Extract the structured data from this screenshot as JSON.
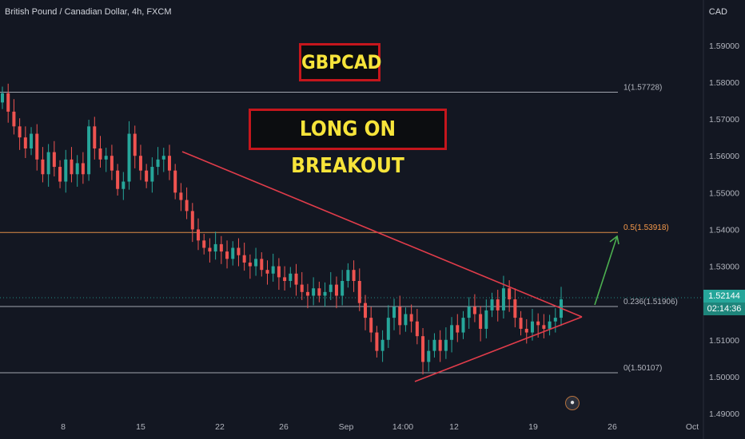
{
  "header": {
    "symbol_line": "British Pound / Canadian Dollar, 4h, FXCM",
    "currency": "CAD"
  },
  "annotations": {
    "symbol_banner": "GBPCAD",
    "signal_banner": "LONG ON BREAKOUT"
  },
  "price_tag": {
    "price": "1.52144",
    "countdown": "02:14:36"
  },
  "footer_icon": "globe-flag-icon",
  "colors": {
    "background": "#131722",
    "bull": "#26a69a",
    "bear": "#ef5350",
    "trendline": "#e03c4a",
    "fib_line": "#d1d4dc",
    "fib_mid": "#f5994b",
    "arrow": "#4caf50",
    "banner_text": "#f7e43a",
    "banner_border": "#c5161c"
  },
  "chart_data": {
    "type": "candlestick",
    "symbol": "GBPCAD",
    "timeframe": "4h",
    "ylim": [
      1.49,
      1.598
    ],
    "y_ticks": [
      "1.59000",
      "1.58000",
      "1.57000",
      "1.56000",
      "1.55000",
      "1.54000",
      "1.53000",
      "1.52000",
      "1.51000",
      "1.50000",
      "1.49000"
    ],
    "x_ticks": [
      "8",
      "15",
      "22",
      "26",
      "Sep",
      "14:00",
      "12",
      "19",
      "26",
      "Oct"
    ],
    "fib_levels": [
      {
        "label": "1(1.57728)",
        "price": 1.57728
      },
      {
        "label": "0.5(1.53918)",
        "price": 1.53918
      },
      {
        "label": "0.236(1.51906)",
        "price": 1.51906
      },
      {
        "label": "0(1.50107)",
        "price": 1.50107
      }
    ],
    "last_price": 1.52144,
    "closes": [
      1.577,
      1.572,
      1.568,
      1.565,
      1.562,
      1.566,
      1.559,
      1.555,
      1.561,
      1.557,
      1.553,
      1.559,
      1.555,
      1.558,
      1.555,
      1.568,
      1.562,
      1.559,
      1.56,
      1.556,
      1.551,
      1.553,
      1.566,
      1.56,
      1.556,
      1.553,
      1.557,
      1.559,
      1.56,
      1.556,
      1.55,
      1.548,
      1.545,
      1.54,
      1.537,
      1.535,
      1.534,
      1.536,
      1.534,
      1.532,
      1.535,
      1.533,
      1.531,
      1.53,
      1.532,
      1.529,
      1.528,
      1.53,
      1.527,
      1.526,
      1.528,
      1.525,
      1.523,
      1.522,
      1.524,
      1.522,
      1.523,
      1.525,
      1.522,
      1.526,
      1.529,
      1.526,
      1.52,
      1.516,
      1.512,
      1.507,
      1.51,
      1.516,
      1.519,
      1.514,
      1.517,
      1.515,
      1.511,
      1.504,
      1.507,
      1.51,
      1.507,
      1.51,
      1.514,
      1.512,
      1.516,
      1.519,
      1.517,
      1.513,
      1.518,
      1.521,
      1.518,
      1.524,
      1.521,
      1.516,
      1.513,
      1.512,
      1.515,
      1.514,
      1.513,
      1.515,
      1.516,
      1.521
    ]
  }
}
